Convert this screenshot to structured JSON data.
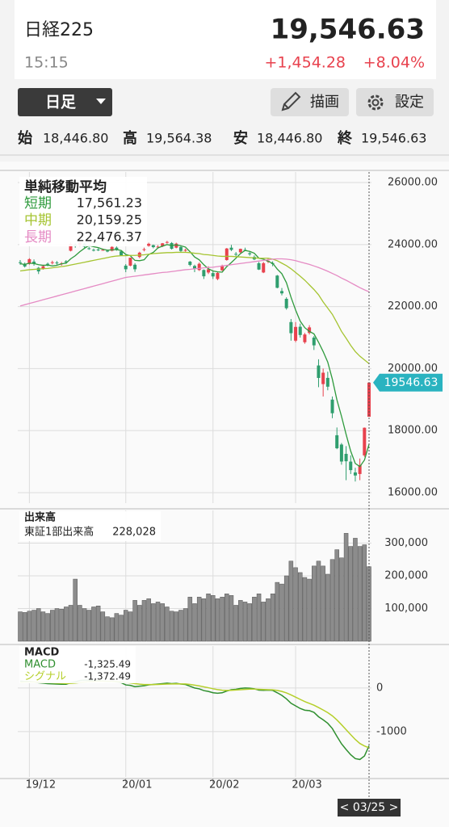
{
  "header": {
    "title": "日経225",
    "price": "19,546.63",
    "time": "15:15",
    "change": "+1,454.28",
    "change_pct": "+8.04%"
  },
  "toolbar": {
    "period": "日足",
    "draw": "描画",
    "settings": "設定"
  },
  "quote": [
    {
      "label": "始",
      "value": "18,446.80"
    },
    {
      "label": "高",
      "value": "19,564.38"
    },
    {
      "label": "安",
      "value": "18,446.80"
    },
    {
      "label": "終",
      "value": "19,546.63"
    }
  ],
  "chart_data": [
    {
      "type": "candlestick",
      "legend_title": "単純移動平均",
      "up_color": "#e8424e",
      "down_color": "#2f9e6e",
      "open": [
        23430,
        23380,
        23380,
        23450,
        23250,
        23220,
        23380,
        23410,
        23420,
        23370,
        23460,
        23800,
        24000,
        23980,
        24030,
        23880,
        23830,
        23840,
        23830,
        23800,
        23800,
        23900,
        23780,
        23320,
        23320,
        23350,
        23600,
        23830,
        23960,
        23980,
        23910,
        23940,
        24070,
        24050,
        23900,
        23920,
        23810,
        23450,
        23310,
        23180,
        23180,
        23100,
        23080,
        22890,
        23170,
        23500,
        23900,
        23700,
        23750,
        23830,
        23720,
        23600,
        23400,
        23100,
        23450,
        23400,
        23000,
        22500,
        22250,
        21500,
        20900,
        21350,
        20850,
        21150,
        21000,
        20100,
        19500,
        19700,
        19000,
        17850,
        17550,
        17250,
        17000,
        16650,
        16600,
        17200,
        18446.8
      ],
      "high": [
        23500,
        23420,
        23560,
        23520,
        23280,
        23350,
        23420,
        23480,
        23470,
        23440,
        23500,
        24060,
        24040,
        24090,
        24050,
        23930,
        23870,
        23880,
        23870,
        23830,
        23950,
        23940,
        23800,
        23370,
        23580,
        23400,
        23770,
        23900,
        24060,
        24000,
        23980,
        24050,
        24120,
        24080,
        24060,
        23950,
        23870,
        23470,
        23350,
        23420,
        23200,
        23300,
        23140,
        23130,
        23350,
        23890,
        23990,
        23760,
        23870,
        23900,
        23760,
        23650,
        23440,
        23440,
        23560,
        23460,
        23020,
        22600,
        22300,
        21600,
        21500,
        21450,
        21150,
        21400,
        21050,
        20300,
        20000,
        19900,
        19100,
        18100,
        17600,
        17500,
        17200,
        16800,
        17100,
        18100,
        19564.38
      ],
      "low": [
        23350,
        23260,
        23350,
        23320,
        23050,
        23190,
        23300,
        23360,
        23350,
        23320,
        23380,
        23780,
        23900,
        23940,
        23900,
        23830,
        23780,
        23790,
        23800,
        23750,
        23780,
        23800,
        23640,
        23110,
        23300,
        23120,
        23560,
        23780,
        23930,
        23880,
        23880,
        23920,
        24030,
        23840,
        23880,
        23760,
        23770,
        23300,
        23110,
        23150,
        22890,
        23050,
        22890,
        22850,
        23150,
        23480,
        23790,
        23630,
        23720,
        23790,
        23640,
        23500,
        23180,
        23080,
        23400,
        23300,
        22590,
        22360,
        21900,
        20900,
        20850,
        21000,
        20800,
        21100,
        20600,
        19400,
        19100,
        19300,
        18400,
        17400,
        16900,
        16400,
        16600,
        16358,
        16400,
        17150,
        18446.8
      ],
      "close": [
        23409,
        23294,
        23529,
        23379,
        23135,
        23300,
        23354,
        23430,
        23410,
        23391,
        23424,
        24023,
        23952,
        24066,
        23934,
        23864,
        23816,
        23821,
        23830,
        23782,
        23924,
        23837,
        23656,
        23204,
        23575,
        23204,
        23739,
        23850,
        24025,
        23917,
        23933,
        24041,
        24083,
        23864,
        24031,
        23795,
        23827,
        23343,
        23216,
        23379,
        22977,
        23205,
        22972,
        23085,
        23320,
        23873,
        23828,
        23686,
        23861,
        23828,
        23688,
        23523,
        23194,
        23400,
        23479,
        23387,
        22606,
        22426,
        21948,
        21142,
        21344,
        21083,
        21100,
        21329,
        20750,
        19698,
        19867,
        19416,
        18560,
        17431,
        17002,
        17011,
        16726,
        16552,
        16887,
        18092,
        19546.63
      ],
      "series": [
        {
          "name": "短期",
          "color": "#2e9a3c",
          "legend_value": "17,561.23",
          "values": [
            23380,
            23360,
            23400,
            23390,
            23350,
            23330,
            23340,
            23310,
            23330,
            23380,
            23400,
            23540,
            23640,
            23770,
            23880,
            23970,
            23930,
            23900,
            23850,
            23820,
            23830,
            23840,
            23810,
            23680,
            23640,
            23490,
            23480,
            23510,
            23680,
            23750,
            23890,
            23950,
            24000,
            23970,
            23990,
            23960,
            23920,
            23770,
            23600,
            23510,
            23350,
            23220,
            23150,
            23120,
            23110,
            23290,
            23420,
            23560,
            23710,
            23810,
            23780,
            23720,
            23560,
            23530,
            23460,
            23400,
            23210,
            23060,
            22770,
            22300,
            21890,
            21530,
            21320,
            21200,
            21120,
            20850,
            20550,
            20210,
            19660,
            18990,
            18460,
            17880,
            17340,
            16940,
            16840,
            17050,
            17561.23
          ]
        },
        {
          "name": "中期",
          "color": "#a5c431",
          "legend_value": "20,159.25",
          "values": [
            23150,
            23170,
            23190,
            23200,
            23210,
            23220,
            23230,
            23250,
            23270,
            23290,
            23310,
            23340,
            23370,
            23400,
            23430,
            23460,
            23490,
            23520,
            23550,
            23580,
            23610,
            23630,
            23640,
            23640,
            23650,
            23650,
            23660,
            23670,
            23690,
            23710,
            23720,
            23730,
            23740,
            23740,
            23750,
            23750,
            23750,
            23740,
            23720,
            23710,
            23680,
            23670,
            23650,
            23630,
            23620,
            23620,
            23620,
            23610,
            23600,
            23590,
            23580,
            23570,
            23560,
            23560,
            23560,
            23530,
            23480,
            23400,
            23320,
            23220,
            23100,
            22980,
            22850,
            22700,
            22550,
            22380,
            22150,
            21950,
            21750,
            21480,
            21200,
            20980,
            20750,
            20550,
            20400,
            20280,
            20159.25
          ]
        },
        {
          "name": "長期",
          "color": "#e58bc4",
          "legend_value": "22,476.37",
          "values": [
            22020,
            22060,
            22100,
            22140,
            22180,
            22220,
            22260,
            22300,
            22340,
            22380,
            22420,
            22460,
            22500,
            22540,
            22580,
            22620,
            22660,
            22700,
            22740,
            22780,
            22820,
            22860,
            22900,
            22940,
            22960,
            22980,
            23000,
            23020,
            23040,
            23060,
            23080,
            23100,
            23110,
            23130,
            23150,
            23170,
            23190,
            23200,
            23220,
            23230,
            23250,
            23260,
            23270,
            23290,
            23310,
            23330,
            23350,
            23370,
            23390,
            23410,
            23430,
            23450,
            23470,
            23490,
            23510,
            23530,
            23540,
            23540,
            23530,
            23510,
            23480,
            23440,
            23400,
            23360,
            23310,
            23260,
            23200,
            23140,
            23070,
            23000,
            22920,
            22850,
            22770,
            22690,
            22610,
            22540,
            22476.37
          ]
        }
      ],
      "price_tag": "19546.63",
      "ylim": [
        15660,
        26340
      ],
      "yticks": [
        {
          "value": 16000,
          "label": "16000.00"
        },
        {
          "value": 18000,
          "label": "18000.00"
        },
        {
          "value": 20000,
          "label": "20000.00"
        },
        {
          "value": 22000,
          "label": "22000.00"
        },
        {
          "value": 24000,
          "label": "24000.00"
        },
        {
          "value": 26000,
          "label": "26000.00"
        }
      ],
      "grid": true
    },
    {
      "type": "bar",
      "title": "出来高",
      "series": [
        {
          "name": "東証1部出来高",
          "color": "#8c8c8c",
          "legend_value": "228,028",
          "values": [
            90000,
            88000,
            92000,
            95000,
            100000,
            90000,
            85000,
            95000,
            100000,
            98000,
            105000,
            110000,
            190000,
            110000,
            100000,
            95000,
            105000,
            108000,
            90000,
            75000,
            72000,
            85000,
            80000,
            95000,
            90000,
            125000,
            110000,
            125000,
            130000,
            115000,
            120000,
            115000,
            105000,
            92000,
            90000,
            95000,
            100000,
            135000,
            115000,
            135000,
            130000,
            145000,
            140000,
            130000,
            135000,
            145000,
            140000,
            110000,
            125000,
            120000,
            115000,
            135000,
            145000,
            120000,
            130000,
            145000,
            180000,
            175000,
            200000,
            245000,
            225000,
            210000,
            195000,
            190000,
            230000,
            245000,
            230000,
            205000,
            250000,
            280000,
            255000,
            330000,
            290000,
            315000,
            290000,
            295000,
            228028
          ]
        }
      ],
      "ylim": [
        0,
        400000
      ],
      "yticks": [
        {
          "value": 100000,
          "label": "100,000"
        },
        {
          "value": 200000,
          "label": "200,000"
        },
        {
          "value": 300000,
          "label": "300,000"
        }
      ],
      "grid": true
    },
    {
      "type": "line",
      "title": "MACD",
      "categories": [
        null,
        null,
        "19/12",
        null,
        null,
        null,
        null,
        null,
        null,
        null,
        null,
        null,
        null,
        null,
        null,
        null,
        null,
        null,
        null,
        null,
        null,
        null,
        null,
        "20/01",
        null,
        null,
        null,
        null,
        null,
        null,
        null,
        null,
        null,
        null,
        null,
        null,
        null,
        null,
        null,
        null,
        null,
        null,
        "20/02",
        null,
        null,
        null,
        null,
        null,
        null,
        null,
        null,
        null,
        null,
        null,
        null,
        null,
        null,
        null,
        null,
        null,
        "20/03",
        null,
        null,
        null,
        null,
        null,
        null,
        null,
        null,
        null,
        null,
        null,
        null,
        null,
        null,
        null,
        null
      ],
      "series": [
        {
          "name": "MACD",
          "color": "#2f8f2f",
          "legend_value": "-1,325.49",
          "values": [
            160,
            150,
            150,
            140,
            120,
            110,
            100,
            95,
            90,
            85,
            85,
            120,
            140,
            170,
            180,
            180,
            175,
            170,
            160,
            150,
            150,
            140,
            120,
            70,
            60,
            30,
            40,
            50,
            70,
            80,
            90,
            100,
            110,
            100,
            105,
            90,
            80,
            40,
            0,
            -20,
            -60,
            -80,
            -110,
            -120,
            -110,
            -70,
            -40,
            -30,
            -10,
            0,
            -5,
            -20,
            -50,
            -55,
            -50,
            -55,
            -110,
            -170,
            -250,
            -350,
            -410,
            -470,
            -510,
            -520,
            -560,
            -660,
            -730,
            -810,
            -930,
            -1110,
            -1280,
            -1410,
            -1530,
            -1620,
            -1640,
            -1560,
            -1325.49
          ]
        },
        {
          "name": "シグナル",
          "color": "#b5cf2a",
          "legend_value": "-1,372.49",
          "values": [
            130,
            135,
            138,
            138,
            135,
            130,
            124,
            118,
            112,
            107,
            103,
            106,
            113,
            124,
            135,
            144,
            150,
            154,
            155,
            154,
            153,
            150,
            144,
            129,
            115,
            98,
            87,
            79,
            77,
            78,
            80,
            84,
            89,
            91,
            94,
            93,
            91,
            81,
            65,
            48,
            26,
            5,
            -18,
            -38,
            -52,
            -56,
            -53,
            -48,
            -41,
            -33,
            -27,
            -26,
            -31,
            -36,
            -39,
            -42,
            -56,
            -79,
            -113,
            -160,
            -210,
            -262,
            -312,
            -354,
            -395,
            -448,
            -505,
            -566,
            -639,
            -733,
            -842,
            -956,
            -1071,
            -1181,
            -1273,
            -1330,
            -1372.49
          ]
        }
      ],
      "ylim": [
        -2040,
        960
      ],
      "yticks": [
        -1000,
        0
      ],
      "cursor_label": "< 03/25 >",
      "grid": true
    }
  ]
}
